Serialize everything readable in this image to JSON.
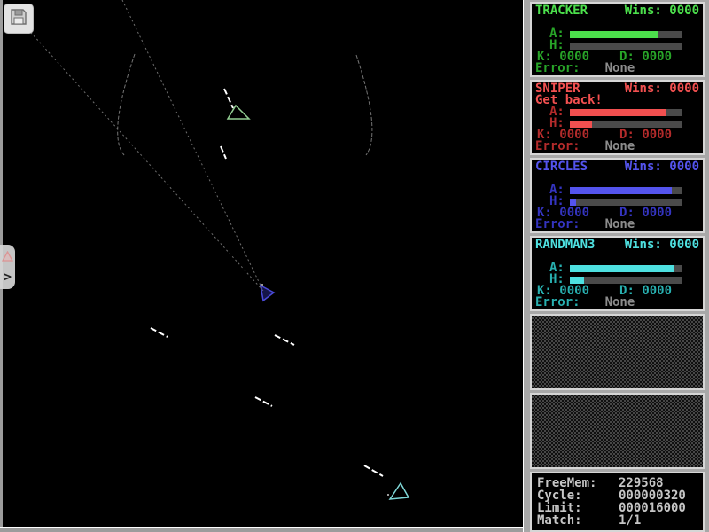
{
  "side_tab": {
    "expand_arrow": ">"
  },
  "arena": {
    "background": "#000000",
    "ships": [
      {
        "name": "tracker-ship",
        "color": "#93cf93",
        "fill": "none",
        "points": [
          [
            257,
            134
          ],
          [
            281,
            134
          ],
          [
            266,
            119
          ]
        ]
      },
      {
        "name": "circles-ship",
        "color": "#4a4ad8",
        "fill": "rgba(60,60,210,0.35)",
        "points": [
          [
            294,
            322
          ],
          [
            309,
            330
          ],
          [
            297,
            339
          ]
        ]
      },
      {
        "name": "randman3-ship",
        "color": "#7fd8d8",
        "fill": "none",
        "points": [
          [
            452,
            545
          ],
          [
            461,
            561
          ],
          [
            440,
            563
          ]
        ]
      }
    ],
    "missiles": [
      [
        253,
        100,
        263,
        122
      ],
      [
        249,
        165,
        255,
        179
      ],
      [
        170,
        370,
        189,
        380
      ],
      [
        310,
        378,
        332,
        389
      ],
      [
        288,
        448,
        307,
        458
      ],
      [
        411,
        525,
        432,
        537
      ]
    ],
    "scan_lines": [
      [
        138,
        0,
        297,
        328
      ],
      [
        18,
        18,
        297,
        328
      ]
    ],
    "scan_arcs": [
      "M152 61 Q120 155 141 176",
      "M402 62 Q431 150 413 175"
    ],
    "debris": [
      [
        437,
        557
      ],
      [
        295,
        320
      ]
    ]
  },
  "sidebar": {
    "labels": {
      "wins": "Wins:",
      "armor": "A:",
      "health": "H:",
      "kills": "K:",
      "deaths": "D:",
      "error": "Error:"
    },
    "robots": [
      {
        "name": "TRACKER",
        "wins": "0000",
        "message": "",
        "kills": "0000",
        "deaths": "0000",
        "error": "None",
        "armor_pct": 79,
        "health_pct": 0,
        "color": "#4ce04c",
        "dim_color": "#28a428"
      },
      {
        "name": "SNIPER",
        "wins": "0000",
        "message": "Get back!",
        "kills": "0000",
        "deaths": "0000",
        "error": "None",
        "armor_pct": 86,
        "health_pct": 20,
        "color": "#f25050",
        "dim_color": "#b32b2b"
      },
      {
        "name": "CIRCLES",
        "wins": "0000",
        "message": "",
        "kills": "0000",
        "deaths": "0000",
        "error": "None",
        "armor_pct": 91,
        "health_pct": 6,
        "color": "#5454ee",
        "dim_color": "#3434c0"
      },
      {
        "name": "RANDMAN3",
        "wins": "0000",
        "message": "",
        "kills": "0000",
        "deaths": "0000",
        "error": "None",
        "armor_pct": 94,
        "health_pct": 13,
        "color": "#4ee0e0",
        "dim_color": "#28b0b0"
      }
    ],
    "stats": {
      "rows": [
        {
          "label": "FreeMem:",
          "value": "229568"
        },
        {
          "label": "Cycle:",
          "value": "000000320"
        },
        {
          "label": "Limit:",
          "value": "000016000"
        },
        {
          "label": "Match:",
          "value": "1/1"
        }
      ]
    }
  }
}
